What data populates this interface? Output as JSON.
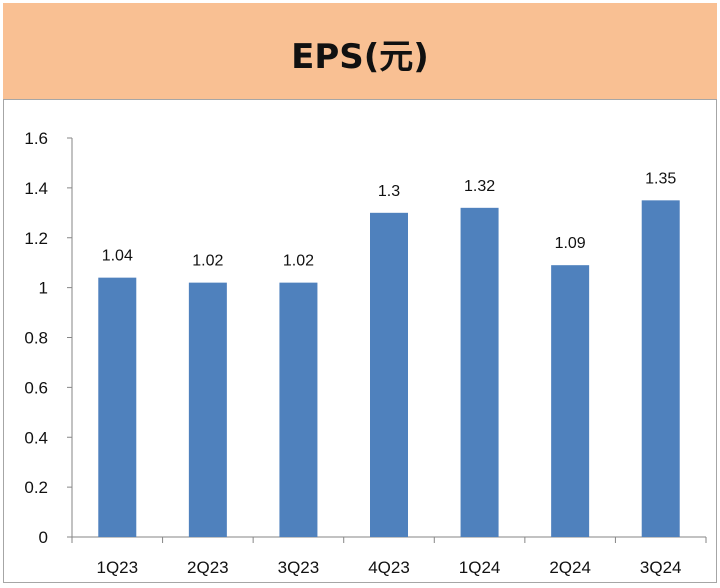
{
  "header": {
    "title": "EPS(元)"
  },
  "colors": {
    "band": "#f9c093",
    "bar": "#4f81bd",
    "axis": "#868686"
  },
  "chart_data": {
    "type": "bar",
    "title": "EPS(元)",
    "categories": [
      "1Q23",
      "2Q23",
      "3Q23",
      "4Q23",
      "1Q24",
      "2Q24",
      "3Q24"
    ],
    "values": [
      1.04,
      1.02,
      1.02,
      1.3,
      1.32,
      1.09,
      1.35
    ],
    "value_labels": [
      "1.04",
      "1.02",
      "1.02",
      "1.3",
      "1.32",
      "1.09",
      "1.35"
    ],
    "yticks": [
      "0",
      "0.2",
      "0.4",
      "0.6",
      "0.8",
      "1",
      "1.2",
      "1.4",
      "1.6"
    ],
    "ylim": [
      0,
      1.6
    ],
    "xlabel": "",
    "ylabel": "",
    "grid": false,
    "legend": "none"
  }
}
